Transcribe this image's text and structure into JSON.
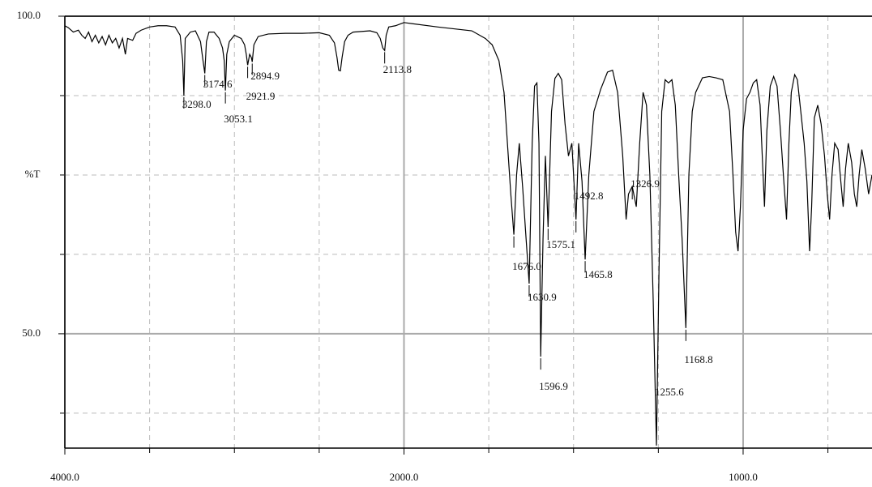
{
  "chart_data": {
    "type": "line",
    "y_label": "%T",
    "x_scale": "split",
    "x_break": 2000,
    "x_break_expansion": 2,
    "xlim": [
      4000,
      620
    ],
    "ylim": [
      32,
      100
    ],
    "xticks": [
      {
        "value": 4000,
        "label": "4000.0"
      },
      {
        "value": 2000,
        "label": "2000.0"
      },
      {
        "value": 1000,
        "label": "1000.0"
      }
    ],
    "yticks": [
      {
        "value": 100,
        "label": "100.0"
      },
      {
        "value": 50,
        "label": "50.0"
      }
    ],
    "xgrid": [
      3500,
      3000,
      2500,
      1750,
      1500,
      1250,
      750
    ],
    "ygrid": [
      87.5,
      75,
      62.5,
      37.5
    ],
    "grid": true,
    "x": [
      4000,
      3980,
      3950,
      3920,
      3900,
      3880,
      3860,
      3840,
      3820,
      3800,
      3780,
      3760,
      3740,
      3720,
      3700,
      3680,
      3660,
      3643,
      3630,
      3600,
      3580,
      3550,
      3500,
      3450,
      3400,
      3350,
      3320,
      3305,
      3298,
      3290,
      3260,
      3230,
      3200,
      3185,
      3174.6,
      3165,
      3150,
      3120,
      3090,
      3070,
      3060,
      3053.1,
      3045,
      3030,
      3000,
      2960,
      2940,
      2930,
      2921.9,
      2910,
      2900,
      2894.9,
      2885,
      2860,
      2800,
      2700,
      2600,
      2500,
      2440,
      2410,
      2395,
      2385,
      2375,
      2365,
      2350,
      2330,
      2300,
      2200,
      2160,
      2140,
      2125,
      2113.8,
      2105,
      2090,
      2050,
      2020,
      2000,
      1900,
      1800,
      1760,
      1740,
      1720,
      1705,
      1695,
      1685,
      1676,
      1668,
      1660,
      1650,
      1640,
      1630.9,
      1622,
      1615,
      1608,
      1602,
      1596.9,
      1590,
      1583,
      1575.1,
      1565,
      1555,
      1545,
      1535,
      1525,
      1515,
      1505,
      1492.8,
      1485,
      1475,
      1465.8,
      1455,
      1440,
      1420,
      1400,
      1385,
      1370,
      1355,
      1345,
      1338,
      1326.9,
      1315,
      1305,
      1295,
      1285,
      1275,
      1265,
      1255.6,
      1248,
      1240,
      1230,
      1220,
      1210,
      1200,
      1190,
      1180,
      1168.8,
      1160,
      1150,
      1140,
      1120,
      1100,
      1080,
      1060,
      1040,
      1030,
      1022,
      1015,
      1008,
      1000,
      990,
      980,
      970,
      960,
      950,
      942,
      937,
      930,
      920,
      910,
      900,
      890,
      880,
      872,
      865,
      858,
      848,
      840,
      830,
      820,
      812,
      804,
      798,
      790,
      780,
      770,
      760,
      752,
      745,
      738,
      730,
      720,
      712,
      705,
      698,
      690,
      680,
      672,
      665,
      658,
      650,
      640,
      630,
      620
    ],
    "series": [
      {
        "color": "#000000",
        "values": [
          98.5,
          98.2,
          97.5,
          97.8,
          97,
          96.5,
          97.5,
          96,
          97,
          95.8,
          96.8,
          95.5,
          97,
          95.8,
          96.5,
          95,
          96.5,
          94,
          96.5,
          96.2,
          97.3,
          97.8,
          98.3,
          98.5,
          98.5,
          98.3,
          97,
          93,
          87.5,
          96.5,
          97.5,
          97.7,
          96,
          93,
          91,
          96,
          97.5,
          97.5,
          96.5,
          95,
          93,
          88.3,
          94,
          96,
          97,
          96.5,
          95.5,
          94,
          92.3,
          94,
          93.5,
          92.8,
          95.5,
          96.8,
          97.2,
          97.3,
          97.3,
          97.4,
          97,
          95.8,
          93.5,
          91.5,
          91.4,
          93.5,
          96,
          97,
          97.5,
          97.7,
          97.4,
          96.5,
          95,
          94.6,
          97,
          98.3,
          98.5,
          98.8,
          99,
          98.3,
          97.7,
          96.5,
          95.5,
          93,
          88,
          80,
          72,
          65.6,
          75,
          80,
          73,
          65,
          57.9,
          80,
          89,
          89.5,
          80,
          46.4,
          65,
          78,
          66.8,
          85,
          90.2,
          91,
          90,
          83,
          78,
          80,
          68,
          80,
          74,
          61.7,
          75,
          85,
          88.5,
          91.2,
          91.5,
          88,
          78,
          68,
          72,
          73.2,
          70,
          80,
          88,
          86,
          75,
          55,
          32.4,
          60,
          85,
          90,
          89.5,
          90,
          86,
          75,
          65,
          50.9,
          75,
          85,
          88,
          90.3,
          90.5,
          90.3,
          90,
          85,
          75,
          66,
          63,
          70,
          82,
          87,
          88,
          89.5,
          90,
          86,
          76,
          70,
          82,
          89,
          90.5,
          89,
          82,
          74,
          68,
          80,
          88,
          90.8,
          90,
          85,
          80,
          74,
          63,
          70,
          84,
          86,
          83,
          78,
          72,
          68,
          75,
          80,
          79,
          74,
          70,
          76,
          80,
          77,
          72,
          70,
          75,
          79,
          76,
          72,
          75
        ]
      }
    ],
    "peaks": [
      {
        "value": 3298,
        "label": "3298.0"
      },
      {
        "value": 3174.6,
        "label": "3174.6"
      },
      {
        "value": 3053.1,
        "label": "3053.1"
      },
      {
        "value": 2921.9,
        "label": "2921.9"
      },
      {
        "value": 2894.9,
        "label": "2894.9"
      },
      {
        "value": 2113.8,
        "label": "2113.8"
      },
      {
        "value": 1676,
        "label": "1676.0"
      },
      {
        "value": 1630.9,
        "label": "1630.9"
      },
      {
        "value": 1596.9,
        "label": "1596.9"
      },
      {
        "value": 1575.1,
        "label": "1575.1"
      },
      {
        "value": 1492.8,
        "label": "1492.8"
      },
      {
        "value": 1465.8,
        "label": "1465.8"
      },
      {
        "value": 1326.9,
        "label": "1326.9"
      },
      {
        "value": 1255.6,
        "label": "1255.6"
      },
      {
        "value": 1168.8,
        "label": "1168.8"
      }
    ]
  }
}
